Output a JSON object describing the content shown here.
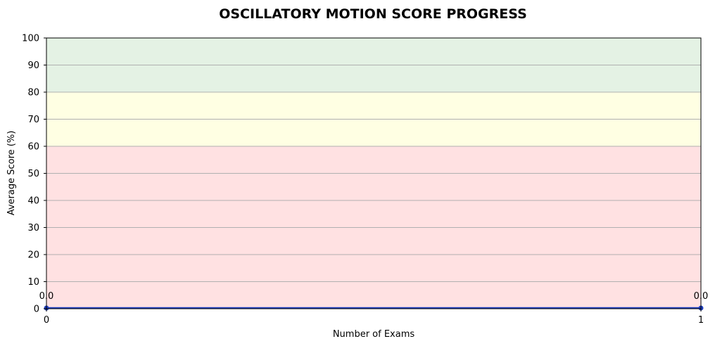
{
  "chart_data": {
    "type": "line",
    "title": "OSCILLATORY MOTION SCORE PROGRESS",
    "xlabel": "Number of Exams",
    "ylabel": "Average Score (%)",
    "xlim": [
      0,
      1
    ],
    "ylim": [
      0,
      100
    ],
    "x_ticks": [
      "0",
      "1"
    ],
    "y_ticks": [
      "0",
      "10",
      "20",
      "30",
      "40",
      "50",
      "60",
      "70",
      "80",
      "90",
      "100"
    ],
    "grid": "horizontal",
    "bands": [
      {
        "from": 0,
        "to": 60,
        "color": "#ffe1e2"
      },
      {
        "from": 60,
        "to": 80,
        "color": "#ffffe3"
      },
      {
        "from": 80,
        "to": 100,
        "color": "#e4f2e4"
      }
    ],
    "series": [
      {
        "x": [
          0,
          1
        ],
        "values": [
          0,
          0
        ],
        "color": "#1f3fbf",
        "fill": "#9fb3e8"
      }
    ],
    "data_labels": [
      "0.0",
      "0.0"
    ]
  }
}
